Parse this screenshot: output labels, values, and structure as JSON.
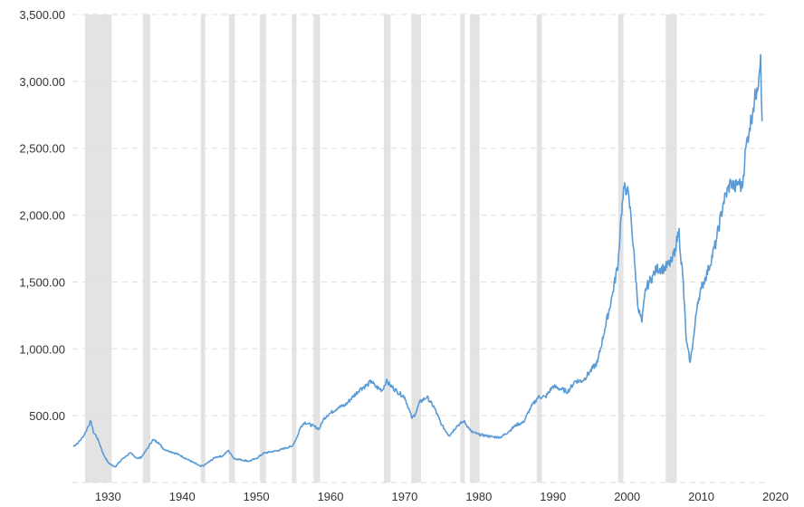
{
  "chart_data": {
    "type": "line",
    "title": "",
    "xlabel": "",
    "ylabel": "",
    "xlim": [
      1925.2,
      2018.6
    ],
    "ylim": [
      0,
      3500
    ],
    "y_ticks": [
      500,
      1000,
      1500,
      2000,
      2500,
      3000,
      3500
    ],
    "y_tick_labels": [
      "500.00",
      "1,000.00",
      "1,500.00",
      "2,000.00",
      "2,500.00",
      "3,000.00",
      "3,500.00"
    ],
    "x_ticks": [
      1930,
      1940,
      1950,
      1960,
      1970,
      1980,
      1990,
      2000,
      2010,
      2020
    ],
    "x_tick_labels": [
      "1930",
      "1940",
      "1950",
      "1960",
      "1970",
      "1980",
      "1990",
      "2000",
      "2010",
      "2020"
    ],
    "grid": true,
    "colors": {
      "line": "#5b9bd5",
      "shade": "#e3e3e3",
      "grid": "#dddddd",
      "tick_text": "#333333"
    },
    "shaded_periods": [
      [
        1926.9,
        1930.5
      ],
      [
        1934.7,
        1935.7
      ],
      [
        1942.5,
        1943.1
      ],
      [
        1946.3,
        1947.1
      ],
      [
        1950.5,
        1951.3
      ],
      [
        1954.8,
        1955.4
      ],
      [
        1957.7,
        1958.6
      ],
      [
        1967.2,
        1968.1
      ],
      [
        1970.9,
        1972.2
      ],
      [
        1977.5,
        1978.1
      ],
      [
        1978.8,
        1980.1
      ],
      [
        1987.8,
        1988.5
      ],
      [
        1998.8,
        1999.5
      ],
      [
        2005.2,
        2006.7
      ]
    ],
    "series": [
      {
        "x": [
          1925.3,
          1926.0,
          1926.6,
          1927.0,
          1927.3,
          1927.7,
          1928.0,
          1928.4,
          1928.8,
          1929.0,
          1929.3,
          1929.6,
          1930.0,
          1930.5,
          1931.0,
          1931.5,
          1932.0,
          1932.5,
          1933.0,
          1933.5,
          1934.0,
          1934.5,
          1935.0,
          1935.5,
          1936.0,
          1936.8,
          1937.5,
          1938.5,
          1939.5,
          1940.5,
          1941.5,
          1942.5,
          1943.0,
          1943.5,
          1944.5,
          1945.5,
          1946.2,
          1947.0,
          1948.0,
          1949.0,
          1950.0,
          1951.0,
          1952.0,
          1953.0,
          1954.0,
          1954.8,
          1955.5,
          1956.0,
          1956.5,
          1957.0,
          1957.8,
          1958.5,
          1959.0,
          1959.5,
          1960.0,
          1961.0,
          1962.0,
          1963.0,
          1964.0,
          1965.0,
          1965.5,
          1966.0,
          1967.0,
          1967.5,
          1968.0,
          1969.0,
          1970.0,
          1970.5,
          1971.0,
          1971.5,
          1972.0,
          1973.0,
          1974.0,
          1975.0,
          1976.0,
          1977.0,
          1978.0,
          1979.0,
          1980.0,
          1981.0,
          1982.0,
          1983.0,
          1984.0,
          1985.0,
          1986.0,
          1987.0,
          1988.0,
          1989.0,
          1990.0,
          1991.0,
          1992.0,
          1993.0,
          1994.0,
          1995.0,
          1996.0,
          1997.0,
          1998.0,
          1998.8,
          1999.2,
          1999.6,
          2000.0,
          2000.5,
          2001.0,
          2001.5,
          2002.0,
          2002.5,
          2003.0,
          2003.5,
          2004.0,
          2005.0,
          2006.0,
          2006.5,
          2007.0,
          2007.2,
          2007.5,
          2008.0,
          2008.5,
          2009.0,
          2009.5,
          2010.0,
          2011.0,
          2012.0,
          2013.0,
          2014.0,
          2014.5,
          2015.0,
          2015.5,
          2016.0,
          2016.5,
          2017.0,
          2017.5,
          2017.8,
          2018.0,
          2018.2
        ],
        "y": [
          270,
          300,
          340,
          380,
          420,
          460,
          380,
          350,
          300,
          270,
          220,
          190,
          150,
          130,
          120,
          150,
          180,
          200,
          220,
          200,
          180,
          190,
          230,
          270,
          320,
          300,
          250,
          230,
          210,
          180,
          150,
          120,
          130,
          150,
          190,
          200,
          240,
          180,
          170,
          160,
          180,
          220,
          230,
          240,
          260,
          270,
          340,
          420,
          450,
          440,
          420,
          400,
          470,
          500,
          520,
          560,
          580,
          640,
          700,
          730,
          760,
          720,
          690,
          760,
          730,
          680,
          640,
          560,
          480,
          520,
          600,
          640,
          560,
          430,
          350,
          420,
          460,
          380,
          360,
          350,
          340,
          340,
          380,
          430,
          450,
          560,
          640,
          640,
          720,
          700,
          680,
          760,
          760,
          830,
          900,
          1150,
          1400,
          1650,
          2000,
          2200,
          2200,
          2000,
          1650,
          1300,
          1200,
          1450,
          1500,
          1550,
          1600,
          1600,
          1650,
          1750,
          1900,
          1700,
          1550,
          1050,
          900,
          1100,
          1350,
          1450,
          1600,
          1800,
          2100,
          2250,
          2200,
          2250,
          2200,
          2500,
          2650,
          2800,
          2950,
          3050,
          3200,
          2700
        ]
      }
    ]
  }
}
